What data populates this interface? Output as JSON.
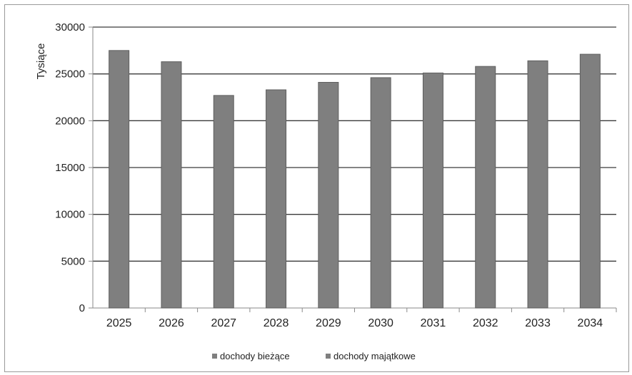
{
  "chart_data": {
    "type": "bar",
    "title": "",
    "xlabel": "",
    "ylabel": "Tysiące",
    "categories": [
      "2025",
      "2026",
      "2027",
      "2028",
      "2029",
      "2030",
      "2031",
      "2032",
      "2033",
      "2034"
    ],
    "series": [
      {
        "name": "dochody bieżące",
        "values": [
          27500,
          26300,
          22700,
          23300,
          24100,
          24600,
          25100,
          25800,
          26400,
          27100
        ]
      },
      {
        "name": "dochody majątkowe",
        "values": [
          0,
          0,
          0,
          0,
          0,
          0,
          0,
          0,
          0,
          0
        ]
      }
    ],
    "stacked": true,
    "ylim": [
      0,
      30000
    ],
    "yticks": [
      0,
      5000,
      10000,
      15000,
      20000,
      25000,
      30000
    ],
    "grid": true,
    "legend_position": "bottom",
    "colors": {
      "bar": "#7f7f7f",
      "bar_edge": "#5e5e5e",
      "grid": "#3a3a3a",
      "axis": "#8a8a8a"
    }
  }
}
